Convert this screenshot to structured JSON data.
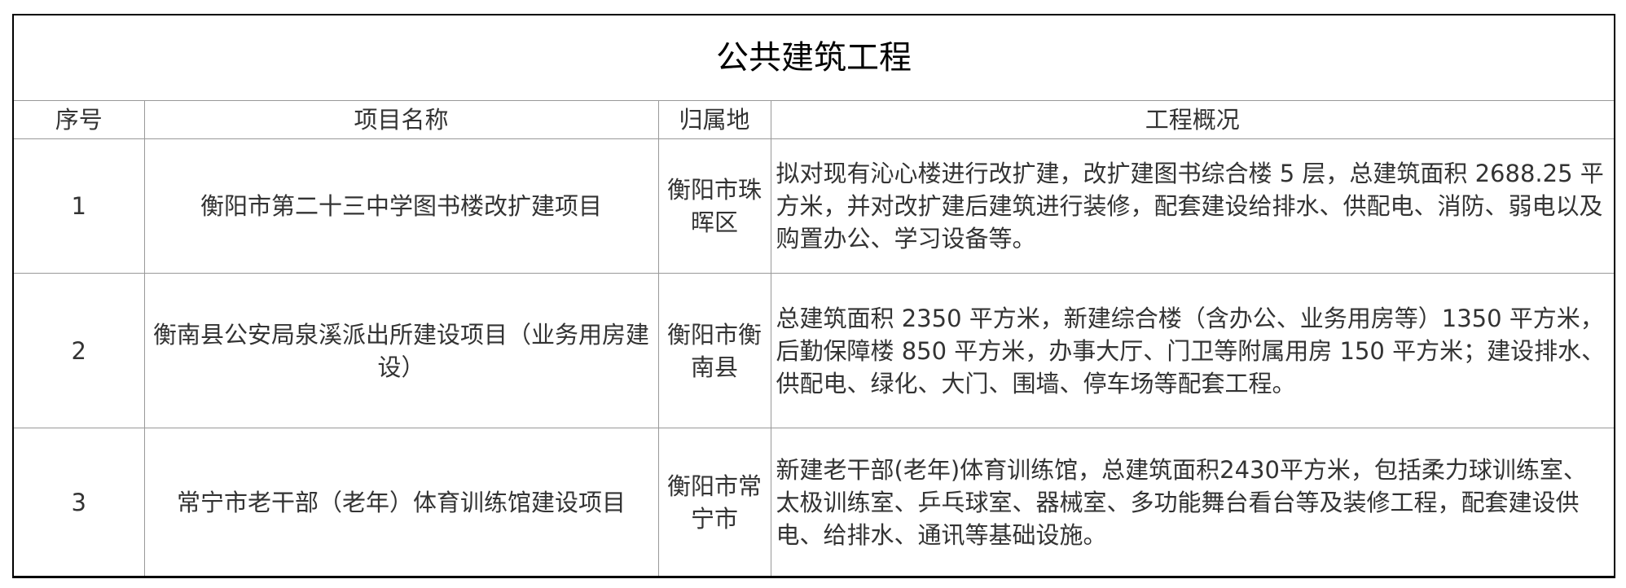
{
  "title": "公共建筑工程",
  "headers": [
    "序号",
    "项目名称",
    "归属地",
    "工程概况"
  ],
  "rows": [
    {
      "no": "1",
      "name": "衡阳市第二十三中学图书楼改扩建项目",
      "location": "衡阳市珠晖区",
      "overview": "拟对现有沁心楼进行改扩建，改扩建图书综合楼 5 层，总建筑面积 2688.25 平方米，并对改扩建后建筑进行装修，配套建设给排水、供配电、消防、弱电以及购置办公、学习设备等。"
    },
    {
      "no": "2",
      "name": "衡南县公安局泉溪派出所建设项目（业务用房建设）",
      "location": "衡阳市衡南县",
      "overview": "总建筑面积 2350 平方米，新建综合楼（含办公、业务用房等）1350 平方米，后勤保障楼 850 平方米，办事大厅、门卫等附属用房 150 平方米；建设排水、供配电、绿化、大门、围墙、停车场等配套工程。"
    },
    {
      "no": "3",
      "name": "常宁市老干部（老年）体育训练馆建设项目",
      "location": "衡阳市常宁市",
      "overview": "新建老干部(老年)体育训练馆，总建筑面积2430平方米，包括柔力球训练室、太极训练室、乒乓球室、器械室、多功能舞台看台等及装修工程，配套建设供电、给排水、通讯等基础设施。"
    }
  ]
}
